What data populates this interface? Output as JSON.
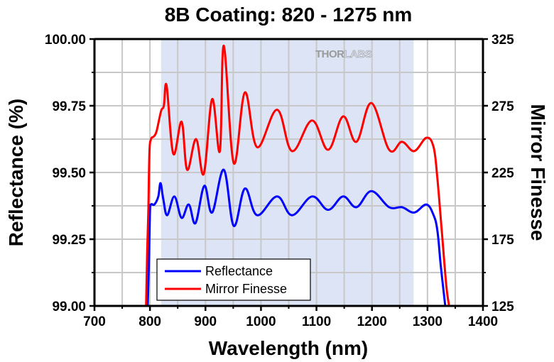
{
  "chart_data": {
    "type": "line",
    "title": "8B Coating: 820 - 1275 nm",
    "xlabel": "Wavelength (nm)",
    "ylabel": "Reflectance (%)",
    "y2label": "Mirror Finesse",
    "xlim": [
      700,
      1400
    ],
    "ylim": [
      99.0,
      100.0
    ],
    "y2lim": [
      125,
      325
    ],
    "xticks": [
      700,
      800,
      900,
      1000,
      1100,
      1200,
      1300,
      1400
    ],
    "xtick_labels": [
      "700",
      "800",
      "900",
      "1000",
      "1100",
      "1200",
      "1300",
      "1400"
    ],
    "yticks": [
      99.0,
      99.25,
      99.5,
      99.75,
      100.0
    ],
    "ytick_labels": [
      "99.00",
      "99.25",
      "99.50",
      "99.75",
      "100.00"
    ],
    "y2ticks": [
      125,
      175,
      225,
      275,
      325
    ],
    "y2tick_labels": [
      "125",
      "175",
      "225",
      "275",
      "325"
    ],
    "x_minor_step": 50,
    "grid": true,
    "shaded_band": {
      "from": 820,
      "to": 1275,
      "color": "#dce4f5"
    },
    "watermark": {
      "bold": "THOR",
      "light": "LABS"
    },
    "legend": {
      "placement": "bottom-left",
      "entries": [
        "Reflectance",
        "Mirror Finesse"
      ]
    },
    "series": [
      {
        "name": "Reflectance",
        "axis": "left",
        "color": "#0000ff",
        "points": [
          [
            796,
            99.0
          ],
          [
            798,
            99.15
          ],
          [
            800,
            99.35
          ],
          [
            802,
            99.38
          ],
          [
            808,
            99.38
          ],
          [
            815,
            99.41
          ],
          [
            819,
            99.46
          ],
          [
            824,
            99.4
          ],
          [
            831,
            99.34
          ],
          [
            844,
            99.41
          ],
          [
            857,
            99.33
          ],
          [
            870,
            99.38
          ],
          [
            882,
            99.31
          ],
          [
            898,
            99.45
          ],
          [
            912,
            99.35
          ],
          [
            933,
            99.51
          ],
          [
            951,
            99.3
          ],
          [
            971,
            99.44
          ],
          [
            993,
            99.34
          ],
          [
            1029,
            99.41
          ],
          [
            1056,
            99.34
          ],
          [
            1092,
            99.41
          ],
          [
            1121,
            99.36
          ],
          [
            1148,
            99.41
          ],
          [
            1172,
            99.37
          ],
          [
            1199,
            99.43
          ],
          [
            1231,
            99.37
          ],
          [
            1254,
            99.37
          ],
          [
            1276,
            99.35
          ],
          [
            1298,
            99.38
          ],
          [
            1311,
            99.34
          ],
          [
            1318,
            99.28
          ],
          [
            1324,
            99.15
          ],
          [
            1332,
            99.0
          ]
        ]
      },
      {
        "name": "Mirror Finesse",
        "axis": "right",
        "color": "#ff0000",
        "points": [
          [
            793,
            125
          ],
          [
            795,
            165
          ],
          [
            797,
            195
          ],
          [
            799,
            240
          ],
          [
            802,
            250
          ],
          [
            807,
            252
          ],
          [
            812,
            256
          ],
          [
            820,
            271
          ],
          [
            825,
            275
          ],
          [
            830,
            290
          ],
          [
            842,
            239
          ],
          [
            857,
            263
          ],
          [
            867,
            227
          ],
          [
            883,
            250
          ],
          [
            897,
            224
          ],
          [
            912,
            280
          ],
          [
            926,
            241
          ],
          [
            933,
            320
          ],
          [
            951,
            232
          ],
          [
            971,
            285
          ],
          [
            993,
            244
          ],
          [
            1029,
            272
          ],
          [
            1056,
            241
          ],
          [
            1092,
            264
          ],
          [
            1121,
            242
          ],
          [
            1148,
            267
          ],
          [
            1172,
            248
          ],
          [
            1199,
            277
          ],
          [
            1231,
            242
          ],
          [
            1254,
            248
          ],
          [
            1276,
            241
          ],
          [
            1298,
            251
          ],
          [
            1311,
            244
          ],
          [
            1318,
            220
          ],
          [
            1326,
            180
          ],
          [
            1334,
            140
          ],
          [
            1339,
            125
          ]
        ]
      }
    ]
  }
}
